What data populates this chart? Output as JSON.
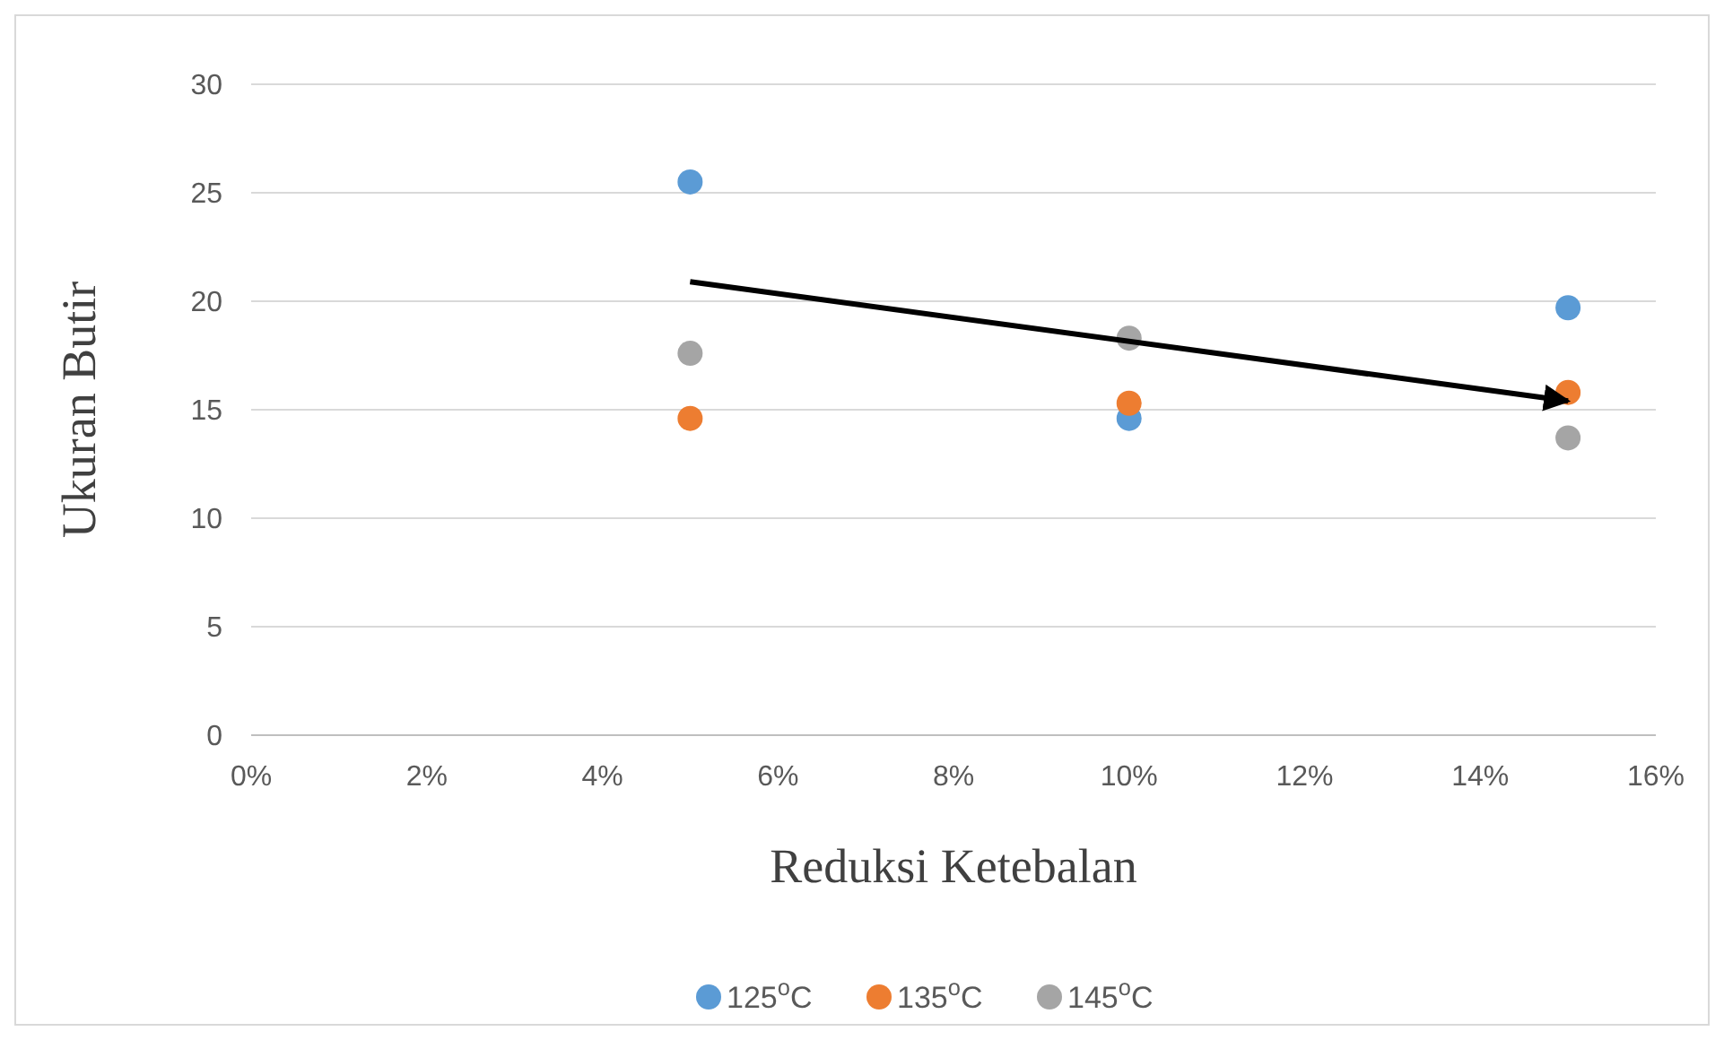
{
  "chart_data": {
    "type": "scatter",
    "xlabel": "Reduksi Ketebalan",
    "ylabel": "Ukuran Butir",
    "xlim": [
      0,
      16
    ],
    "xticks": [
      {
        "value": 0,
        "label": "0%"
      },
      {
        "value": 2,
        "label": "2%"
      },
      {
        "value": 4,
        "label": "4%"
      },
      {
        "value": 6,
        "label": "6%"
      },
      {
        "value": 8,
        "label": "8%"
      },
      {
        "value": 10,
        "label": "10%"
      },
      {
        "value": 12,
        "label": "12%"
      },
      {
        "value": 14,
        "label": "14%"
      },
      {
        "value": 16,
        "label": "16%"
      }
    ],
    "ylim": [
      0,
      30
    ],
    "yticks": [
      0,
      5,
      10,
      15,
      20,
      25,
      30
    ],
    "grid": "y",
    "legend": "bottom",
    "marker": "circle",
    "series": [
      {
        "name": "125$^{o}$C",
        "color": "#5b9bd5",
        "x": [
          5,
          10,
          15
        ],
        "values": [
          25.5,
          14.6,
          19.7
        ]
      },
      {
        "name": "135$^{o}$C",
        "color": "#ed7d31",
        "x": [
          5,
          10,
          15
        ],
        "values": [
          14.6,
          15.3,
          15.8
        ]
      },
      {
        "name": "145$^{o}$C",
        "color": "#a5a5a5",
        "x": [
          5,
          10,
          15
        ],
        "values": [
          17.6,
          18.3,
          13.7
        ]
      },
      {
        "type": "line",
        "color": "#000000",
        "x": [
          5,
          15
        ],
        "values": [
          20.9,
          15.4
        ],
        "marker": "none"
      }
    ]
  }
}
